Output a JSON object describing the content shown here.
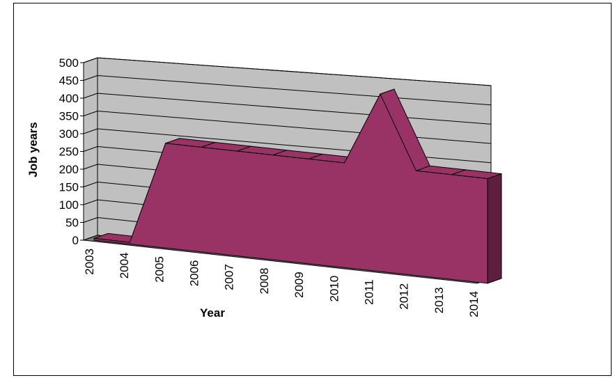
{
  "chart_data": {
    "type": "area",
    "style": "3d",
    "title": "",
    "xlabel": "Year",
    "ylabel": "Job years",
    "categories": [
      "2003",
      "2004",
      "2005",
      "2006",
      "2007",
      "2008",
      "2009",
      "2010",
      "2011",
      "2012",
      "2013",
      "2014"
    ],
    "series": [
      {
        "values": [
          5,
          5,
          295,
          295,
          295,
          295,
          295,
          295,
          500,
          295,
          295,
          295
        ]
      }
    ],
    "ylim": [
      0,
      500
    ],
    "yticks": [
      0,
      50,
      100,
      150,
      200,
      250,
      300,
      350,
      400,
      450,
      500
    ],
    "grid": true,
    "legend": "none",
    "colors": {
      "series": "#993366",
      "series_dark": "#5e1f3f",
      "walls": "#c0c0c0",
      "floor": "#808080",
      "gridline": "#000000"
    }
  }
}
